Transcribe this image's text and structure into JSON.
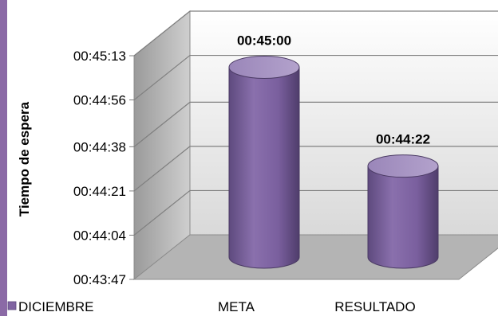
{
  "chart_data": {
    "type": "bar",
    "style": "3d-cylinder",
    "title": "",
    "xlabel": "",
    "ylabel": "Tiempo de espera",
    "categories": [
      "META",
      "RESULTADO"
    ],
    "series": [
      {
        "name": "DICIEMBRE",
        "values": [
          "00:45:00",
          "00:44:22"
        ],
        "color": "#8064a2"
      }
    ],
    "ylim": [
      "00:43:47",
      "00:45:13"
    ],
    "yticks": [
      "00:43:47",
      "00:44:04",
      "00:44:21",
      "00:44:38",
      "00:44:56",
      "00:45:13"
    ],
    "data_labels": [
      "00:45:00",
      "00:44:22"
    ],
    "grid": true,
    "legend": "bottom-left"
  }
}
